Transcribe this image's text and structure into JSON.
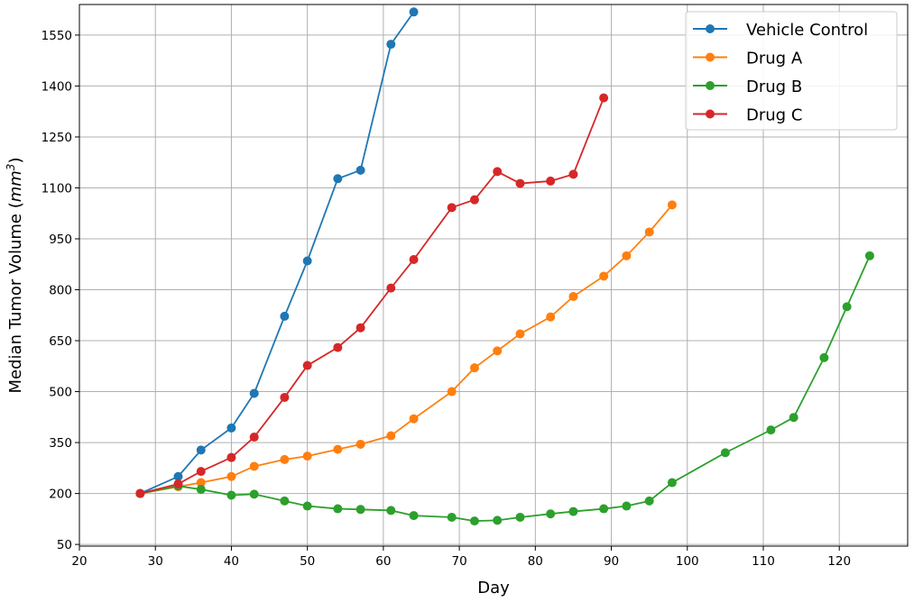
{
  "chart_data": {
    "type": "line",
    "title": "",
    "xlabel": "Day",
    "ylabel_main": "Median Tumor Volume (",
    "ylabel_unit_base": "mm",
    "ylabel_unit_exp": "3",
    "ylabel_close": ")",
    "xlim": [
      20,
      129
    ],
    "ylim": [
      45,
      1640
    ],
    "xticks": [
      20,
      30,
      40,
      50,
      60,
      70,
      80,
      90,
      100,
      110,
      120
    ],
    "yticks": [
      50,
      200,
      350,
      500,
      650,
      800,
      950,
      1100,
      1250,
      1400,
      1550
    ],
    "grid": true,
    "legend_position": "top-right",
    "series": [
      {
        "name": "Vehicle Control",
        "color": "#1f77b4",
        "x": [
          28,
          33,
          36,
          40,
          43,
          47,
          50,
          54,
          57,
          61,
          64
        ],
        "y": [
          200,
          250,
          328,
          393,
          495,
          722,
          885,
          1127,
          1152,
          1523,
          1618
        ]
      },
      {
        "name": "Drug A",
        "color": "#ff7f0e",
        "x": [
          28,
          33,
          36,
          40,
          43,
          47,
          50,
          54,
          57,
          61,
          64,
          69,
          72,
          75,
          78,
          82,
          85,
          89,
          92,
          95,
          98
        ],
        "y": [
          200,
          220,
          232,
          250,
          280,
          300,
          310,
          330,
          345,
          370,
          420,
          500,
          570,
          620,
          670,
          720,
          780,
          840,
          900,
          970,
          1050
        ]
      },
      {
        "name": "Drug B",
        "color": "#2ca02c",
        "x": [
          28,
          33,
          36,
          40,
          43,
          47,
          50,
          54,
          57,
          61,
          64,
          69,
          72,
          75,
          78,
          82,
          85,
          89,
          92,
          95,
          98,
          105,
          111,
          114,
          118,
          121,
          124
        ],
        "y": [
          200,
          222,
          212,
          195,
          198,
          178,
          163,
          155,
          153,
          150,
          135,
          130,
          119,
          121,
          130,
          140,
          147,
          155,
          163,
          178,
          232,
          320,
          387,
          424,
          600,
          750,
          900
        ]
      },
      {
        "name": "Drug C",
        "color": "#d62728",
        "x": [
          28,
          33,
          36,
          40,
          43,
          47,
          50,
          54,
          57,
          61,
          64,
          69,
          72,
          75,
          78,
          82,
          85,
          89
        ],
        "y": [
          200,
          228,
          265,
          306,
          366,
          483,
          577,
          630,
          688,
          805,
          889,
          1042,
          1065,
          1148,
          1113,
          1120,
          1140,
          1365
        ]
      }
    ]
  }
}
